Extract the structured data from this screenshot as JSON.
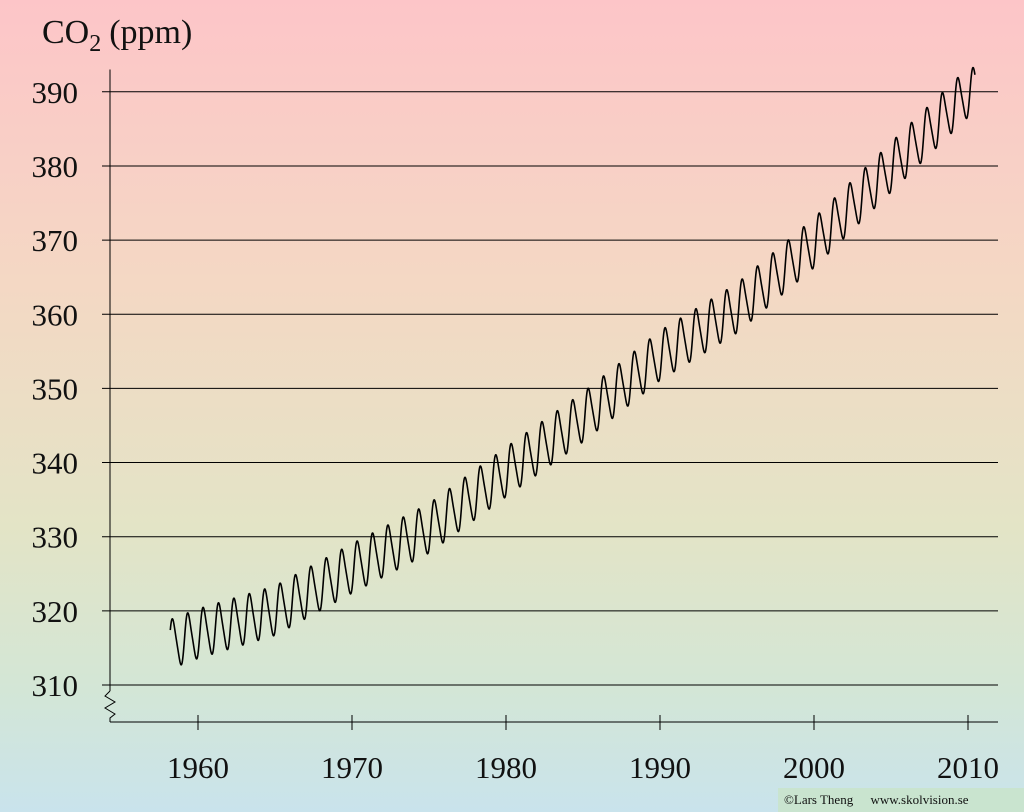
{
  "chart_data": {
    "type": "line",
    "title": "CO₂ (ppm)",
    "title_parts": {
      "base": "CO",
      "sub": "2",
      "unit": "(ppm)"
    },
    "xlabel": "",
    "ylabel": "",
    "xlim": [
      1954.5,
      2012.5
    ],
    "ylim": [
      306,
      393
    ],
    "y_axis_break": true,
    "grid": "horizontal",
    "legend": "none",
    "xticks": [
      1960,
      1970,
      1980,
      1990,
      2000,
      2010
    ],
    "yticks": [
      310,
      320,
      330,
      340,
      350,
      360,
      370,
      380,
      390
    ],
    "annual_mean_anchors": {
      "x": [
        1958,
        1960,
        1965,
        1970,
        1975,
        1980,
        1985,
        1990,
        1995,
        2000,
        2005,
        2010
      ],
      "y": [
        315.3,
        316.9,
        320.0,
        325.7,
        331.1,
        338.7,
        346.1,
        354.4,
        360.8,
        369.6,
        379.8,
        389.9
      ]
    },
    "seasonal_amplitude_ppm": 3.2,
    "series": [
      {
        "values_description": "monthly CO2 concentration with seasonal cycle",
        "color": "#000000"
      }
    ]
  },
  "credit": {
    "author": "©Lars Theng",
    "site": "www.skolvision.se"
  }
}
